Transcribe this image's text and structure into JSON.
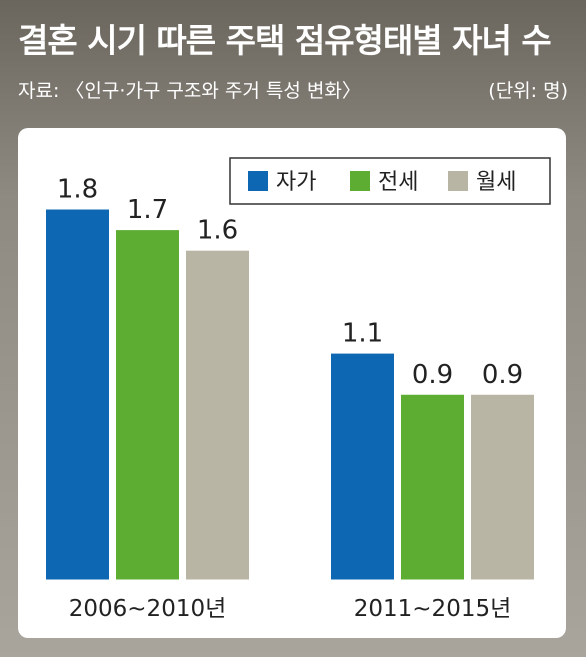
{
  "title": "결혼 시기 따른 주택 점유형태별 자녀 수",
  "source": "자료: 〈인구·가구 구조와 주거 특성 변화〉",
  "unit": "(단위: 명)",
  "chart_data": {
    "type": "bar",
    "categories": [
      "2006~2010년",
      "2011~2015년"
    ],
    "series": [
      {
        "name": "자가",
        "values": [
          1.8,
          1.1
        ],
        "color": "#0d67b3"
      },
      {
        "name": "전세",
        "values": [
          1.7,
          0.9
        ],
        "color": "#5ead33"
      },
      {
        "name": "월세",
        "values": [
          1.6,
          0.9
        ],
        "color": "#b9b5a4"
      }
    ],
    "ylim": [
      0,
      2.06
    ],
    "legend": "top-right",
    "grid": false
  }
}
